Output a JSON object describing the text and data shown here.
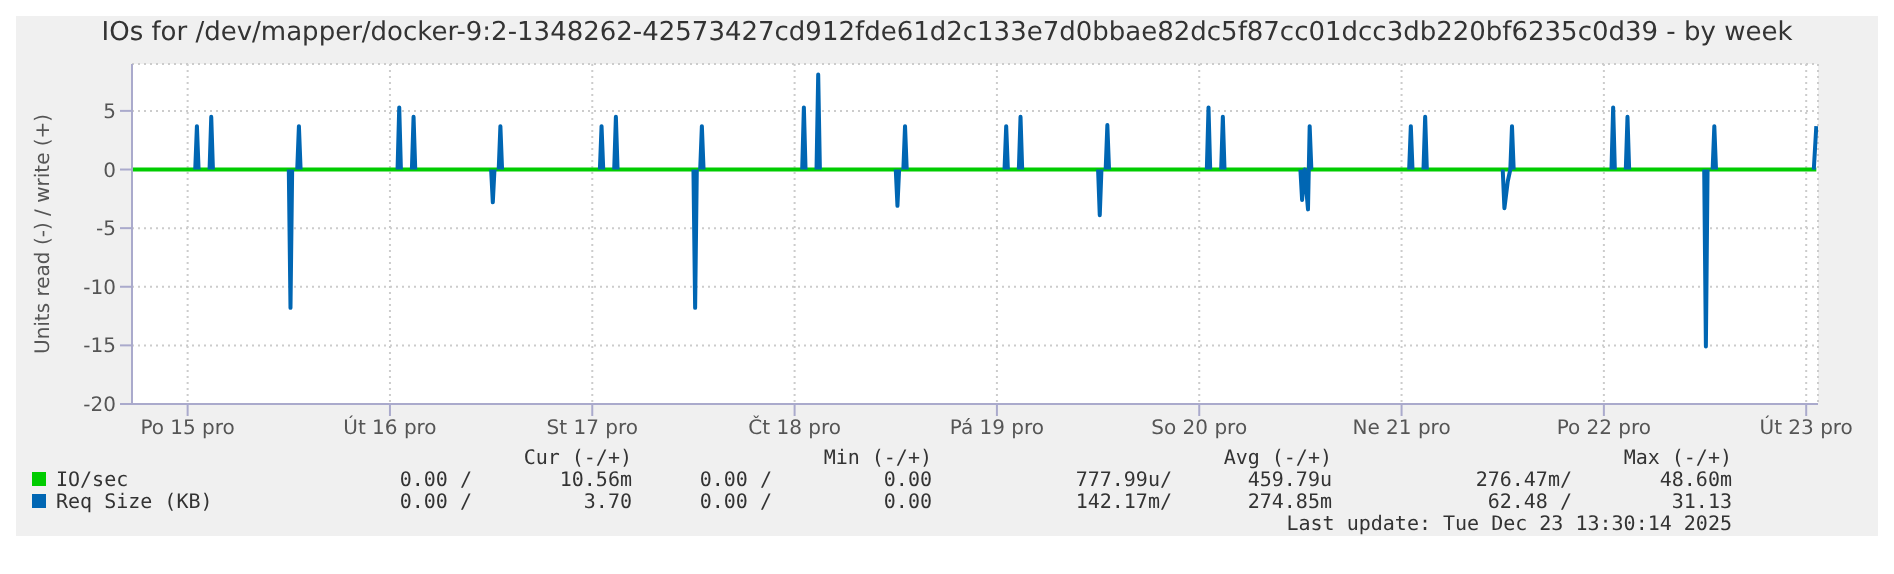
{
  "chart_data": {
    "type": "line",
    "title": "IOs for /dev/mapper/docker-9:2-1348262-42573427cd912fde61d2c133e7d0bbae82dc5f87cc01dcc3db220bf6235c0d39 - by week",
    "ylabel": "Units read (-) / write (+)",
    "xlim": [
      "2025-12-15T05:24",
      "2025-12-23T13:24"
    ],
    "xticks": [
      {
        "value": "2025-12-15T12:00",
        "label": "Po 15 pro"
      },
      {
        "value": "2025-12-16T12:00",
        "label": "Út 16 pro"
      },
      {
        "value": "2025-12-17T12:00",
        "label": "St 17 pro"
      },
      {
        "value": "2025-12-18T12:00",
        "label": "Čt 18 pro"
      },
      {
        "value": "2025-12-19T12:00",
        "label": "Pá 19 pro"
      },
      {
        "value": "2025-12-20T12:00",
        "label": "So 20 pro"
      },
      {
        "value": "2025-12-21T12:00",
        "label": "Ne 21 pro"
      },
      {
        "value": "2025-12-22T12:00",
        "label": "Po 22 pro"
      },
      {
        "value": "2025-12-23T12:00",
        "label": "Út 23 pro"
      }
    ],
    "ylim": [
      -20,
      9
    ],
    "yticks": [
      -20,
      -15,
      -10,
      -5,
      0,
      5
    ],
    "grid": true,
    "legend": "bottom",
    "line_style": "solid",
    "series": [
      {
        "name": "IO/sec",
        "color": "#00cc00",
        "x": [
          "2025-12-15T05:24",
          "2025-12-23T13:12"
        ],
        "values": [
          0,
          0
        ]
      },
      {
        "name": "Req Size (KB)",
        "color": "#0066b3",
        "x": [
          "2025-12-15T12:54",
          "2025-12-15T13:06",
          "2025-12-15T13:18",
          "2025-12-15T13:24",
          "2025-12-15T14:36",
          "2025-12-15T14:48",
          "2025-12-15T15:00",
          "2025-12-15T15:06",
          "2025-12-16T00:00",
          "2025-12-16T00:12",
          "2025-12-16T00:24",
          "2025-12-16T00:30",
          "2025-12-16T01:00",
          "2025-12-16T01:12",
          "2025-12-16T01:24",
          "2025-12-16T01:30",
          "2025-12-16T12:54",
          "2025-12-16T13:06",
          "2025-12-16T13:18",
          "2025-12-16T13:24",
          "2025-12-16T14:36",
          "2025-12-16T14:48",
          "2025-12-16T15:00",
          "2025-12-16T15:06",
          "2025-12-17T00:00",
          "2025-12-17T00:12",
          "2025-12-17T00:24",
          "2025-12-17T00:30",
          "2025-12-17T00:54",
          "2025-12-17T01:06",
          "2025-12-17T01:18",
          "2025-12-17T01:24",
          "2025-12-17T12:54",
          "2025-12-17T13:06",
          "2025-12-17T13:18",
          "2025-12-17T13:24",
          "2025-12-17T14:36",
          "2025-12-17T14:48",
          "2025-12-17T15:00",
          "2025-12-17T15:06",
          "2025-12-18T00:00",
          "2025-12-18T00:12",
          "2025-12-18T00:24",
          "2025-12-18T00:30",
          "2025-12-18T00:48",
          "2025-12-18T01:00",
          "2025-12-18T01:12",
          "2025-12-18T01:18",
          "2025-12-18T12:54",
          "2025-12-18T13:06",
          "2025-12-18T13:18",
          "2025-12-18T13:24",
          "2025-12-18T14:36",
          "2025-12-18T14:48",
          "2025-12-18T15:00",
          "2025-12-18T15:06",
          "2025-12-19T00:00",
          "2025-12-19T00:12",
          "2025-12-19T00:24",
          "2025-12-19T00:30",
          "2025-12-19T00:54",
          "2025-12-19T01:06",
          "2025-12-19T01:18",
          "2025-12-19T01:24",
          "2025-12-19T12:54",
          "2025-12-19T13:06",
          "2025-12-19T13:18",
          "2025-12-19T13:24",
          "2025-12-19T14:36",
          "2025-12-19T14:48",
          "2025-12-19T15:00",
          "2025-12-19T15:06",
          "2025-12-20T00:00",
          "2025-12-20T00:12",
          "2025-12-20T00:24",
          "2025-12-20T00:30",
          "2025-12-20T00:54",
          "2025-12-20T01:06",
          "2025-12-20T01:18",
          "2025-12-20T01:24",
          "2025-12-20T12:54",
          "2025-12-20T13:06",
          "2025-12-20T13:18",
          "2025-12-20T13:24",
          "2025-12-20T14:36",
          "2025-12-20T14:48",
          "2025-12-20T15:00",
          "2025-12-20T15:06",
          "2025-12-21T00:00",
          "2025-12-21T00:12",
          "2025-12-21T00:30",
          "2025-12-21T00:54",
          "2025-12-21T01:06",
          "2025-12-21T01:18",
          "2025-12-21T01:24",
          "2025-12-21T12:54",
          "2025-12-21T13:06",
          "2025-12-21T13:18",
          "2025-12-21T13:24",
          "2025-12-21T14:36",
          "2025-12-21T14:48",
          "2025-12-21T15:00",
          "2025-12-21T15:06",
          "2025-12-22T00:00",
          "2025-12-22T00:12",
          "2025-12-22T00:36",
          "2025-12-22T00:54",
          "2025-12-22T01:06",
          "2025-12-22T01:18",
          "2025-12-22T01:24",
          "2025-12-22T12:54",
          "2025-12-22T13:06",
          "2025-12-22T13:18",
          "2025-12-22T13:24",
          "2025-12-22T14:36",
          "2025-12-22T14:48",
          "2025-12-22T15:00",
          "2025-12-22T15:06",
          "2025-12-22T23:54",
          "2025-12-23T00:06",
          "2025-12-23T00:18",
          "2025-12-23T00:24",
          "2025-12-23T00:54",
          "2025-12-23T01:06",
          "2025-12-23T01:18",
          "2025-12-23T01:24",
          "2025-12-23T12:54",
          "2025-12-23T13:12"
        ],
        "values": [
          0,
          3.7,
          0,
          null,
          0,
          4.5,
          0,
          null,
          0,
          -11.8,
          0,
          null,
          0,
          3.7,
          0,
          null,
          0,
          5.3,
          0,
          null,
          0,
          4.5,
          0,
          null,
          0,
          -2.8,
          0,
          null,
          0,
          3.7,
          0,
          null,
          0,
          3.7,
          0,
          null,
          0,
          4.5,
          0,
          null,
          0,
          -11.8,
          0,
          null,
          0,
          3.7,
          0,
          null,
          0,
          5.3,
          0,
          null,
          0,
          8.1,
          0,
          null,
          0,
          -3.1,
          0,
          null,
          0,
          3.7,
          0,
          null,
          0,
          3.7,
          0,
          null,
          0,
          4.5,
          0,
          null,
          0,
          -3.9,
          0,
          null,
          0,
          3.8,
          0,
          null,
          0,
          5.3,
          0,
          null,
          0,
          4.5,
          0,
          null,
          0,
          -2.6,
          0,
          -3.4,
          3.7,
          0,
          null,
          0,
          3.7,
          0,
          null,
          0,
          4.5,
          0,
          null,
          0,
          -3.3,
          -1.0,
          0,
          3.7,
          0,
          null,
          0,
          5.3,
          0,
          null,
          0,
          4.5,
          0,
          null,
          0,
          -15.1,
          0,
          null,
          0,
          3.7,
          0,
          null,
          0,
          3.7
        ]
      }
    ],
    "annotations": [
      "Cur (-/+)",
      "Min (-/+)",
      "Avg (-/+)",
      "Max (-/+)",
      "0.00 /",
      "10.56m",
      "0.00 /",
      "0.00",
      "777.99u/",
      "459.79u",
      "276.47m/",
      "48.60m",
      "0.00 /",
      "3.70",
      "0.00 /",
      "0.00",
      "142.17m/",
      "274.85m",
      "62.48 /",
      "31.13",
      "Last update: Tue Dec 23 13:30:14 2025"
    ]
  }
}
